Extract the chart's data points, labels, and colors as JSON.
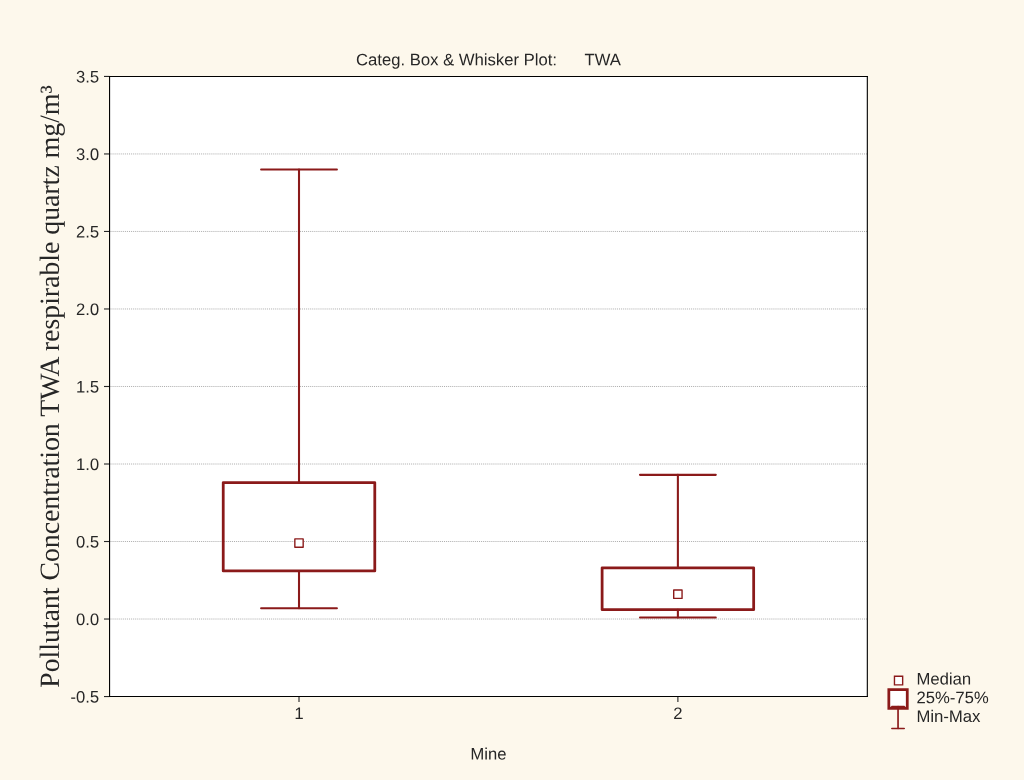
{
  "chart_data": {
    "type": "box",
    "title": "Categ. Box & Whisker Plot:      TWA",
    "xlabel": "Mine",
    "ylabel": "Pollutant Concentration TWA respirable quartz mg/m³",
    "categories": [
      "1",
      "2"
    ],
    "boxes": [
      {
        "low": 0.07,
        "q1": 0.31,
        "median": 0.49,
        "q3": 0.88,
        "high": 2.9
      },
      {
        "low": 0.01,
        "q1": 0.06,
        "median": 0.16,
        "q3": 0.33,
        "high": 0.93
      }
    ],
    "color": "#8b1a1a",
    "ylim": [
      -0.5,
      3.5
    ],
    "yticks": [
      {
        "value": -0.5,
        "label": "-0.5"
      },
      {
        "value": 0,
        "label": "0.0"
      },
      {
        "value": 0.5,
        "label": "0.5"
      },
      {
        "value": 1,
        "label": "1.0"
      },
      {
        "value": 1.5,
        "label": "1.5"
      },
      {
        "value": 2,
        "label": "2.0"
      },
      {
        "value": 2.5,
        "label": "2.5"
      },
      {
        "value": 3,
        "label": "3.0"
      },
      {
        "value": 3.5,
        "label": "3.5"
      }
    ],
    "grid": "y",
    "annotations": [
      "Median",
      "25%-75%",
      "Min-Max"
    ]
  }
}
